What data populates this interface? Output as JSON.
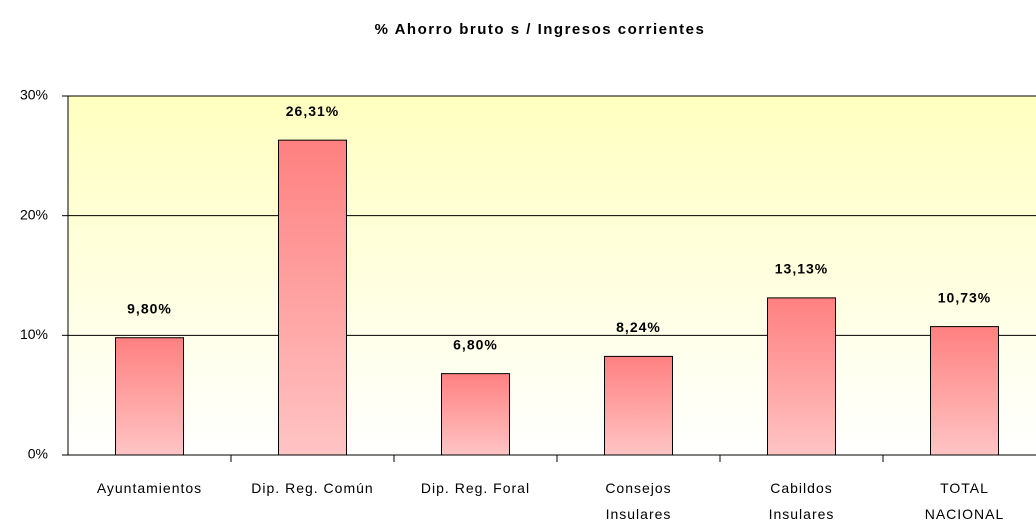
{
  "chart_data": {
    "type": "bar",
    "title": "% Ahorro bruto s / Ingresos corrientes",
    "categories": [
      "Ayuntamientos",
      "Dip. Reg. Común",
      "Dip. Reg. Foral",
      "Consejos\nInsulares",
      "Cabildos\nInsulares",
      "TOTAL\nNACIONAL"
    ],
    "values": [
      9.8,
      26.31,
      6.8,
      8.24,
      13.13,
      10.73
    ],
    "value_labels": [
      "9,80%",
      "26,31%",
      "6,80%",
      "8,24%",
      "13,13%",
      "10,73%"
    ],
    "color": "#ff8080",
    "ylim": [
      0,
      30
    ],
    "yticks": [
      {
        "value": 0,
        "label": "0%"
      },
      {
        "value": 10,
        "label": "10%"
      },
      {
        "value": 20,
        "label": "20%"
      },
      {
        "value": 30,
        "label": "30%"
      }
    ],
    "grid": true
  }
}
